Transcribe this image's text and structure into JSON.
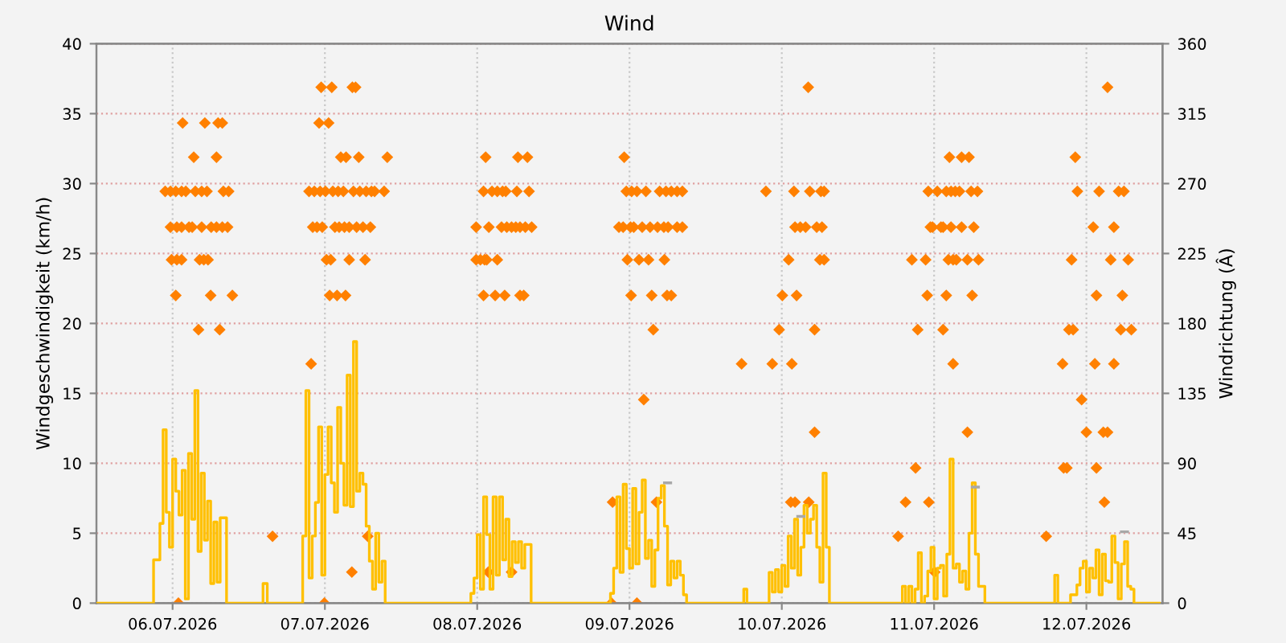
{
  "chart_data": {
    "type": "step",
    "title": "Wind",
    "ylabel": "Windgeschwindigkeit (km/h)",
    "y2label": "Windrichtung (Â)",
    "xlim": [
      "2026-07-06T00:00",
      "2026-07-13T00:00"
    ],
    "xticks": [
      {
        "value": "2026-07-06T12:00",
        "label": "06.07.2026"
      },
      {
        "value": "2026-07-07T12:00",
        "label": "07.07.2026"
      },
      {
        "value": "2026-07-08T12:00",
        "label": "08.07.2026"
      },
      {
        "value": "2026-07-09T12:00",
        "label": "09.07.2026"
      },
      {
        "value": "2026-07-10T12:00",
        "label": "10.07.2026"
      },
      {
        "value": "2026-07-11T12:00",
        "label": "11.07.2026"
      },
      {
        "value": "2026-07-12T12:00",
        "label": "12.07.2026"
      }
    ],
    "ylim": [
      0,
      40
    ],
    "yticks": [
      0,
      5,
      10,
      15,
      20,
      25,
      30,
      35,
      40
    ],
    "y2lim": [
      0,
      360
    ],
    "y2ticks": [
      0,
      45,
      90,
      135,
      180,
      225,
      270,
      315,
      360
    ],
    "grid": true,
    "legend": false,
    "series": [
      {
        "color": "#ffc000",
        "x": [
          "2026-07-06T00:00",
          "2026-07-06T09:00",
          "2026-07-06T09:30",
          "2026-07-06T10:00",
          "2026-07-06T10:30",
          "2026-07-06T11:00",
          "2026-07-06T11:30",
          "2026-07-06T12:00",
          "2026-07-06T12:30",
          "2026-07-06T13:00",
          "2026-07-06T13:30",
          "2026-07-06T14:00",
          "2026-07-06T14:30",
          "2026-07-06T15:00",
          "2026-07-06T15:30",
          "2026-07-06T16:00",
          "2026-07-06T16:30",
          "2026-07-06T17:00",
          "2026-07-06T17:30",
          "2026-07-06T18:00",
          "2026-07-06T18:30",
          "2026-07-06T19:00",
          "2026-07-06T19:30",
          "2026-07-06T20:00",
          "2026-07-06T20:30",
          "2026-07-07T02:15",
          "2026-07-07T02:55",
          "2026-07-07T08:30",
          "2026-07-07T09:00",
          "2026-07-07T09:30",
          "2026-07-07T10:00",
          "2026-07-07T10:30",
          "2026-07-07T11:00",
          "2026-07-07T11:30",
          "2026-07-07T12:00",
          "2026-07-07T12:30",
          "2026-07-07T13:00",
          "2026-07-07T13:30",
          "2026-07-07T14:00",
          "2026-07-07T14:30",
          "2026-07-07T15:00",
          "2026-07-07T15:30",
          "2026-07-07T16:00",
          "2026-07-07T16:30",
          "2026-07-07T17:00",
          "2026-07-07T17:30",
          "2026-07-07T18:00",
          "2026-07-07T18:30",
          "2026-07-07T19:00",
          "2026-07-07T19:30",
          "2026-07-07T20:00",
          "2026-07-07T20:30",
          "2026-07-07T21:00",
          "2026-07-07T21:30",
          "2026-07-08T11:00",
          "2026-07-08T11:30",
          "2026-07-08T12:00",
          "2026-07-08T12:30",
          "2026-07-08T13:00",
          "2026-07-08T13:30",
          "2026-07-08T14:00",
          "2026-07-08T14:30",
          "2026-07-08T15:00",
          "2026-07-08T15:30",
          "2026-07-08T16:00",
          "2026-07-08T16:30",
          "2026-07-08T17:00",
          "2026-07-08T17:30",
          "2026-07-08T18:00",
          "2026-07-08T18:30",
          "2026-07-08T19:00",
          "2026-07-08T19:30",
          "2026-07-08T20:00",
          "2026-07-08T20:30",
          "2026-07-09T09:00",
          "2026-07-09T09:30",
          "2026-07-09T10:00",
          "2026-07-09T10:30",
          "2026-07-09T11:00",
          "2026-07-09T11:30",
          "2026-07-09T12:00",
          "2026-07-09T12:30",
          "2026-07-09T13:00",
          "2026-07-09T13:30",
          "2026-07-09T14:00",
          "2026-07-09T14:30",
          "2026-07-09T15:00",
          "2026-07-09T15:30",
          "2026-07-09T16:00",
          "2026-07-09T16:30",
          "2026-07-09T17:00",
          "2026-07-09T17:30",
          "2026-07-09T18:00",
          "2026-07-09T18:30",
          "2026-07-09T19:00",
          "2026-07-09T19:30",
          "2026-07-09T20:00",
          "2026-07-09T20:30",
          "2026-07-09T21:00",
          "2026-07-10T06:00",
          "2026-07-10T06:30",
          "2026-07-10T10:00",
          "2026-07-10T10:30",
          "2026-07-10T11:00",
          "2026-07-10T11:30",
          "2026-07-10T12:00",
          "2026-07-10T12:30",
          "2026-07-10T13:00",
          "2026-07-10T13:30",
          "2026-07-10T14:00",
          "2026-07-10T14:30",
          "2026-07-10T15:00",
          "2026-07-10T15:30",
          "2026-07-10T16:00",
          "2026-07-10T16:30",
          "2026-07-10T17:00",
          "2026-07-10T17:30",
          "2026-07-10T18:00",
          "2026-07-10T18:30",
          "2026-07-10T19:00",
          "2026-07-10T19:30",
          "2026-07-11T07:00",
          "2026-07-11T07:30",
          "2026-07-11T08:00",
          "2026-07-11T08:30",
          "2026-07-11T09:00",
          "2026-07-11T09:30",
          "2026-07-11T10:00",
          "2026-07-11T10:30",
          "2026-07-11T11:00",
          "2026-07-11T11:30",
          "2026-07-11T12:00",
          "2026-07-11T12:30",
          "2026-07-11T13:00",
          "2026-07-11T13:30",
          "2026-07-11T14:00",
          "2026-07-11T14:30",
          "2026-07-11T15:00",
          "2026-07-11T15:30",
          "2026-07-11T16:00",
          "2026-07-11T16:30",
          "2026-07-11T17:00",
          "2026-07-11T17:30",
          "2026-07-11T18:00",
          "2026-07-11T18:30",
          "2026-07-11T19:00",
          "2026-07-11T19:30",
          "2026-07-11T20:00",
          "2026-07-12T07:00",
          "2026-07-12T07:30",
          "2026-07-12T08:00",
          "2026-07-12T08:30",
          "2026-07-12T09:00",
          "2026-07-12T09:30",
          "2026-07-12T10:00",
          "2026-07-12T10:30",
          "2026-07-12T11:00",
          "2026-07-12T11:30",
          "2026-07-12T12:00",
          "2026-07-12T12:30",
          "2026-07-12T13:00",
          "2026-07-12T13:30",
          "2026-07-12T14:00",
          "2026-07-12T14:30",
          "2026-07-12T15:00",
          "2026-07-12T15:30",
          "2026-07-12T16:00",
          "2026-07-12T16:30",
          "2026-07-12T17:00",
          "2026-07-12T17:30",
          "2026-07-12T18:00",
          "2026-07-12T18:30",
          "2026-07-12T19:00",
          "2026-07-12T19:30",
          "2026-07-12T23:30"
        ],
        "values": [
          0,
          3.1,
          3.1,
          5.7,
          12.4,
          6.5,
          4.0,
          10.3,
          8.0,
          6.3,
          9.5,
          0.3,
          10.7,
          6.0,
          15.2,
          3.7,
          9.3,
          4.5,
          7.3,
          1.4,
          5.8,
          1.5,
          6.1,
          6.1,
          0,
          1.4,
          0,
          4.8,
          15.2,
          1.8,
          4.8,
          7.2,
          12.6,
          2.0,
          9.2,
          12.6,
          8.6,
          6.5,
          14.0,
          10.0,
          7.0,
          16.3,
          6.9,
          18.7,
          8.0,
          9.3,
          8.5,
          5.5,
          3.0,
          1.0,
          5.0,
          1.5,
          3.0,
          0,
          0.7,
          1.8,
          4.9,
          1.0,
          7.6,
          4.9,
          1.0,
          7.6,
          2.0,
          7.6,
          3.1,
          6.0,
          1.9,
          4.4,
          2.9,
          4.4,
          2.5,
          4.2,
          4.2,
          0,
          0.7,
          2.5,
          7.6,
          2.2,
          8.5,
          3.9,
          2.5,
          8.2,
          2.8,
          6.5,
          8.8,
          3.2,
          4.5,
          1.2,
          3.8,
          7.5,
          8.4,
          5.5,
          1.3,
          3.0,
          1.8,
          3.0,
          2.0,
          0.6,
          0,
          1.0,
          0,
          2.2,
          0.8,
          2.4,
          0.8,
          2.7,
          1.2,
          4.8,
          2.5,
          6.0,
          2.0,
          4.0,
          7.0,
          5.0,
          6.0,
          7.0,
          4.0,
          1.5,
          9.3,
          4.0,
          0,
          1.2,
          0,
          1.2,
          0,
          1.0,
          3.6,
          0,
          0.5,
          2.3,
          4.0,
          0.3,
          2.5,
          2.7,
          0.5,
          3.5,
          10.3,
          2.5,
          2.8,
          1.5,
          2.3,
          1.0,
          5.0,
          8.6,
          3.5,
          1.2,
          1.2,
          0,
          2.0,
          0,
          0,
          0,
          0,
          0.6,
          0.6,
          1.3,
          2.5,
          3.0,
          0.8,
          2.5,
          1.8,
          3.8,
          0.6,
          3.5,
          1.6,
          1.5,
          4.8,
          2.9,
          0.3,
          2.8,
          4.4,
          1.2,
          1.0,
          0,
          0
        ]
      },
      {
        "color": "#a8a8a8",
        "x": [
          "2026-07-09T17:30",
          "2026-07-09T18:00",
          "2026-07-09T18:30",
          "2026-07-10T14:30",
          "2026-07-10T15:00",
          "2026-07-10T15:30",
          "2026-07-11T18:00",
          "2026-07-11T18:30",
          "2026-07-11T19:00",
          "2026-07-12T17:30",
          "2026-07-12T18:30"
        ],
        "values": [
          8.6,
          8.6,
          null,
          6.2,
          6.2,
          null,
          8.3,
          8.3,
          null,
          5.1,
          5.1
        ]
      },
      {
        "type": "scatter",
        "axis": "y2",
        "color": "#ff8000",
        "marker": "diamond",
        "x": [
          "2026-07-06T13:35",
          "2026-07-06T17:05",
          "2026-07-06T19:10",
          "2026-07-06T19:50",
          "2026-07-06T15:20",
          "2026-07-06T18:55",
          "2026-07-06T10:50",
          "2026-07-06T11:40",
          "2026-07-06T12:30",
          "2026-07-06T13:25",
          "2026-07-06T14:05",
          "2026-07-06T15:35",
          "2026-07-06T16:35",
          "2026-07-06T17:25",
          "2026-07-06T20:00",
          "2026-07-06T20:50",
          "2026-07-06T11:40",
          "2026-07-06T12:40",
          "2026-07-06T13:25",
          "2026-07-06T14:35",
          "2026-07-06T15:05",
          "2026-07-06T16:35",
          "2026-07-06T18:05",
          "2026-07-06T18:55",
          "2026-07-06T19:50",
          "2026-07-06T20:40",
          "2026-07-06T11:50",
          "2026-07-06T12:40",
          "2026-07-06T13:25",
          "2026-07-06T16:15",
          "2026-07-06T16:55",
          "2026-07-06T17:35",
          "2026-07-06T12:30",
          "2026-07-06T18:00",
          "2026-07-06T21:25",
          "2026-07-06T16:05",
          "2026-07-06T19:25",
          "2026-07-06T12:55",
          "2026-07-07T03:45",
          "2026-07-07T11:25",
          "2026-07-07T13:05",
          "2026-07-07T16:20",
          "2026-07-07T16:50",
          "2026-07-07T11:05",
          "2026-07-07T12:35",
          "2026-07-07T14:30",
          "2026-07-07T15:20",
          "2026-07-07T17:20",
          "2026-07-07T21:50",
          "2026-07-07T09:30",
          "2026-07-07T10:20",
          "2026-07-07T11:15",
          "2026-07-07T12:05",
          "2026-07-07T13:15",
          "2026-07-07T14:05",
          "2026-07-07T14:55",
          "2026-07-07T16:30",
          "2026-07-07T17:30",
          "2026-07-07T18:30",
          "2026-07-07T19:20",
          "2026-07-07T19:50",
          "2026-07-07T21:20",
          "2026-07-07T10:05",
          "2026-07-07T10:45",
          "2026-07-07T11:35",
          "2026-07-07T13:35",
          "2026-07-07T14:15",
          "2026-07-07T15:05",
          "2026-07-07T15:50",
          "2026-07-07T17:00",
          "2026-07-07T18:00",
          "2026-07-07T19:10",
          "2026-07-07T12:15",
          "2026-07-07T12:55",
          "2026-07-07T15:50",
          "2026-07-07T18:20",
          "2026-07-07T12:45",
          "2026-07-07T13:55",
          "2026-07-07T15:15",
          "2026-07-07T09:50",
          "2026-07-07T18:45",
          "2026-07-07T16:15",
          "2026-07-07T11:55",
          "2026-07-08T13:20",
          "2026-07-08T18:25",
          "2026-07-08T19:55",
          "2026-07-08T13:00",
          "2026-07-08T14:20",
          "2026-07-08T15:10",
          "2026-07-08T16:00",
          "2026-07-08T16:30",
          "2026-07-08T18:15",
          "2026-07-08T20:10",
          "2026-07-08T11:50",
          "2026-07-08T13:50",
          "2026-07-08T15:50",
          "2026-07-08T16:40",
          "2026-07-08T17:25",
          "2026-07-08T18:05",
          "2026-07-08T18:45",
          "2026-07-08T19:35",
          "2026-07-08T20:35",
          "2026-07-08T11:50",
          "2026-07-08T12:30",
          "2026-07-08T13:10",
          "2026-07-08T13:30",
          "2026-07-08T15:10",
          "2026-07-08T13:00",
          "2026-07-08T14:50",
          "2026-07-08T16:20",
          "2026-07-08T18:45",
          "2026-07-08T19:20",
          "2026-07-08T13:45",
          "2026-07-08T17:25",
          "2026-07-09T11:10",
          "2026-07-09T11:30",
          "2026-07-09T12:20",
          "2026-07-09T13:10",
          "2026-07-09T14:35",
          "2026-07-09T16:45",
          "2026-07-09T17:45",
          "2026-07-09T18:35",
          "2026-07-09T19:30",
          "2026-07-09T20:20",
          "2026-07-09T10:20",
          "2026-07-09T11:00",
          "2026-07-09T12:10",
          "2026-07-09T12:40",
          "2026-07-09T14:00",
          "2026-07-09T15:15",
          "2026-07-09T16:25",
          "2026-07-09T17:25",
          "2026-07-09T18:05",
          "2026-07-09T19:30",
          "2026-07-09T20:20",
          "2026-07-09T11:40",
          "2026-07-09T13:30",
          "2026-07-09T15:00",
          "2026-07-09T17:30",
          "2026-07-09T12:15",
          "2026-07-09T15:30",
          "2026-07-09T17:55",
          "2026-07-09T18:35",
          "2026-07-09T15:45",
          "2026-07-09T14:15",
          "2026-07-09T09:20",
          "2026-07-09T16:15",
          "2026-07-09T09:10",
          "2026-07-09T13:10",
          "2026-07-10T16:10",
          "2026-07-10T09:30",
          "2026-07-10T13:55",
          "2026-07-10T16:25",
          "2026-07-10T18:10",
          "2026-07-10T18:40",
          "2026-07-10T14:05",
          "2026-07-10T14:55",
          "2026-07-10T15:45",
          "2026-07-10T17:30",
          "2026-07-10T18:20",
          "2026-07-10T13:05",
          "2026-07-10T18:00",
          "2026-07-10T18:40",
          "2026-07-10T12:05",
          "2026-07-10T14:20",
          "2026-07-10T11:35",
          "2026-07-10T17:10",
          "2026-07-10T05:40",
          "2026-07-10T10:30",
          "2026-07-10T13:35",
          "2026-07-10T17:10",
          "2026-07-10T13:25",
          "2026-07-10T14:05",
          "2026-07-10T16:15",
          "2026-07-11T14:25",
          "2026-07-11T16:20",
          "2026-07-11T17:30",
          "2026-07-11T11:05",
          "2026-07-11T12:30",
          "2026-07-11T13:55",
          "2026-07-11T14:40",
          "2026-07-11T15:20",
          "2026-07-11T16:00",
          "2026-07-11T17:50",
          "2026-07-11T18:50",
          "2026-07-11T11:25",
          "2026-07-11T11:45",
          "2026-07-11T13:05",
          "2026-07-11T13:25",
          "2026-07-11T14:40",
          "2026-07-11T16:20",
          "2026-07-11T18:15",
          "2026-07-11T08:30",
          "2026-07-11T10:40",
          "2026-07-11T14:15",
          "2026-07-11T15:00",
          "2026-07-11T15:30",
          "2026-07-11T17:15",
          "2026-07-11T19:00",
          "2026-07-11T10:55",
          "2026-07-11T13:55",
          "2026-07-11T18:00",
          "2026-07-11T09:25",
          "2026-07-11T13:25",
          "2026-07-11T15:00",
          "2026-07-11T17:15",
          "2026-07-11T09:05",
          "2026-07-11T07:30",
          "2026-07-11T11:10",
          "2026-07-11T06:20",
          "2026-07-11T12:05",
          "2026-07-12T15:20",
          "2026-07-12T10:15",
          "2026-07-12T10:35",
          "2026-07-12T14:00",
          "2026-07-12T17:05",
          "2026-07-12T17:55",
          "2026-07-12T13:05",
          "2026-07-12T16:20",
          "2026-07-12T09:40",
          "2026-07-12T15:50",
          "2026-07-12T18:35",
          "2026-07-12T13:35",
          "2026-07-12T17:40",
          "2026-07-12T09:15",
          "2026-07-12T09:55",
          "2026-07-12T17:25",
          "2026-07-12T19:05",
          "2026-07-12T08:15",
          "2026-07-12T13:20",
          "2026-07-12T16:20",
          "2026-07-12T11:15",
          "2026-07-12T12:00",
          "2026-07-12T14:40",
          "2026-07-12T15:20",
          "2026-07-12T08:25",
          "2026-07-12T08:55",
          "2026-07-12T13:35",
          "2026-07-12T14:50",
          "2026-07-12T05:40"
        ],
        "values": [
          309,
          309,
          309,
          309,
          287,
          287,
          265,
          265,
          265,
          265,
          265,
          265,
          265,
          265,
          265,
          265,
          242,
          242,
          242,
          242,
          242,
          242,
          242,
          242,
          242,
          242,
          221,
          221,
          221,
          221,
          221,
          221,
          198,
          198,
          198,
          176,
          176,
          0,
          43,
          332,
          332,
          332,
          332,
          309,
          309,
          287,
          287,
          287,
          287,
          265,
          265,
          265,
          265,
          265,
          265,
          265,
          265,
          265,
          265,
          265,
          265,
          265,
          242,
          242,
          242,
          242,
          242,
          242,
          242,
          242,
          242,
          242,
          221,
          221,
          221,
          221,
          198,
          198,
          198,
          154,
          43,
          20,
          0,
          287,
          287,
          287,
          265,
          265,
          265,
          265,
          265,
          265,
          265,
          242,
          242,
          242,
          242,
          242,
          242,
          242,
          242,
          242,
          221,
          221,
          221,
          221,
          221,
          198,
          198,
          198,
          198,
          198,
          20,
          20,
          287,
          265,
          265,
          265,
          265,
          265,
          265,
          265,
          265,
          265,
          242,
          242,
          242,
          242,
          242,
          242,
          242,
          242,
          242,
          242,
          242,
          221,
          221,
          221,
          221,
          198,
          198,
          198,
          198,
          176,
          131,
          65,
          65,
          0,
          0,
          332,
          265,
          265,
          265,
          265,
          265,
          242,
          242,
          242,
          242,
          242,
          221,
          221,
          221,
          198,
          198,
          176,
          176,
          154,
          154,
          154,
          110,
          65,
          65,
          65,
          287,
          287,
          287,
          265,
          265,
          265,
          265,
          265,
          265,
          265,
          265,
          242,
          242,
          242,
          242,
          242,
          242,
          242,
          221,
          221,
          221,
          221,
          221,
          221,
          221,
          198,
          198,
          198,
          176,
          176,
          154,
          110,
          87,
          65,
          65,
          43,
          20,
          332,
          287,
          265,
          265,
          265,
          265,
          242,
          242,
          221,
          221,
          221,
          198,
          198,
          176,
          176,
          176,
          176,
          154,
          154,
          154,
          131,
          110,
          110,
          110,
          87,
          87,
          87,
          65,
          43
        ]
      }
    ]
  }
}
